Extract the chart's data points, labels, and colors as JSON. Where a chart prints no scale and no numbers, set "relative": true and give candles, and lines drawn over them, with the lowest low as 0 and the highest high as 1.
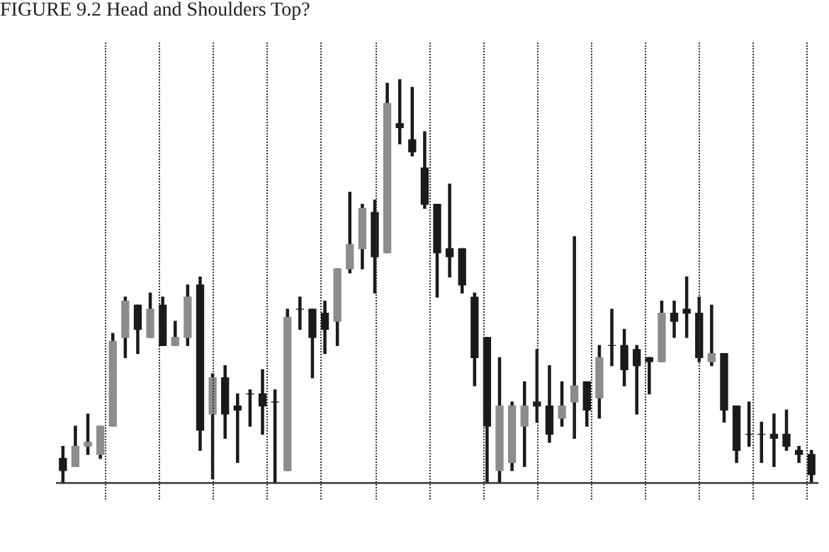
{
  "chart_data": {
    "type": "candlestick",
    "title": "FIGURE 9.2 Head and Shoulders Top?",
    "relative": true,
    "color": "#1a1a1a",
    "grid": "x",
    "colors": [
      "#1a1a1a",
      "#8c8c8c",
      "#8c8c8c",
      "#8c8c8c",
      "#8c8c8c",
      "#8c8c8c",
      "#1a1a1a",
      "#8c8c8c",
      "#1a1a1a",
      "#8c8c8c",
      "#8c8c8c",
      "#1a1a1a",
      "#8c8c8c",
      "#1a1a1a",
      "#1a1a1a",
      "#1a1a1a",
      "#1a1a1a",
      "#1a1a1a",
      "#8c8c8c",
      "#1a1a1a",
      "#1a1a1a",
      "#1a1a1a",
      "#8c8c8c",
      "#8c8c8c",
      "#8c8c8c",
      "#1a1a1a",
      "#8c8c8c",
      "#1a1a1a",
      "#1a1a1a",
      "#1a1a1a",
      "#1a1a1a",
      "#1a1a1a",
      "#1a1a1a",
      "#1a1a1a",
      "#1a1a1a",
      "#8c8c8c",
      "#8c8c8c",
      "#8c8c8c",
      "#1a1a1a",
      "#1a1a1a",
      "#8c8c8c",
      "#8c8c8c",
      "#1a1a1a",
      "#8c8c8c",
      "#1a1a1a",
      "#1a1a1a",
      "#1a1a1a",
      "#1a1a1a",
      "#8c8c8c",
      "#1a1a1a",
      "#1a1a1a",
      "#1a1a1a",
      "#8c8c8c",
      "#1a1a1a",
      "#1a1a1a",
      "#1a1a1a",
      "#1a1a1a",
      "#1a1a1a",
      "#1a1a1a",
      "#1a1a1a",
      "#1a1a1a"
    ],
    "categories": [
      null,
      null,
      null,
      null,
      null,
      null,
      null,
      null,
      null,
      null,
      null,
      null,
      null,
      null,
      null,
      null,
      null,
      null,
      null,
      null,
      null,
      null,
      null,
      null,
      null,
      null,
      null,
      null,
      null,
      null,
      null,
      null,
      null,
      null,
      null,
      null,
      null,
      null,
      null,
      null,
      null,
      null,
      null,
      null,
      null,
      null,
      null,
      null,
      null,
      null,
      null,
      null,
      null,
      null,
      null,
      null,
      null,
      null,
      null,
      null,
      null
    ],
    "ohlc": [
      [
        0.06,
        0.09,
        0,
        0.03
      ],
      [
        0.04,
        0.14,
        0.04,
        0.09
      ],
      [
        0.09,
        0.17,
        0.07,
        0.1
      ],
      [
        0.07,
        0.14,
        0.06,
        0.14
      ],
      [
        0.14,
        0.37,
        0.14,
        0.35
      ],
      [
        0.36,
        0.46,
        0.31,
        0.45
      ],
      [
        0.44,
        0.44,
        0.32,
        0.38
      ],
      [
        0.36,
        0.47,
        0.36,
        0.43
      ],
      [
        0.44,
        0.46,
        0.34,
        0.34
      ],
      [
        0.34,
        0.4,
        0.34,
        0.36
      ],
      [
        0.36,
        0.49,
        0.34,
        0.46
      ],
      [
        0.49,
        0.51,
        0.08,
        0.13
      ],
      [
        0.17,
        0.27,
        0.01,
        0.26
      ],
      [
        0.26,
        0.29,
        0.11,
        0.17
      ],
      [
        0.19,
        0.22,
        0.05,
        0.18
      ],
      [
        0.22,
        0.23,
        0.14,
        0.22
      ],
      [
        0.22,
        0.28,
        0.12,
        0.19
      ],
      [
        0.2,
        0.23,
        0,
        0.2
      ],
      [
        0.03,
        0.43,
        0.03,
        0.41
      ],
      [
        0.43,
        0.46,
        0.38,
        0.43
      ],
      [
        0.43,
        0.43,
        0.26,
        0.36
      ],
      [
        0.42,
        0.45,
        0.32,
        0.38
      ],
      [
        0.4,
        0.53,
        0.34,
        0.53
      ],
      [
        0.53,
        0.72,
        0.52,
        0.59
      ],
      [
        0.58,
        0.69,
        0.53,
        0.68
      ],
      [
        0.67,
        0.7,
        0.47,
        0.56
      ],
      [
        0.57,
        0.99,
        0.57,
        0.94
      ],
      [
        0.89,
        1,
        0.84,
        0.88
      ],
      [
        0.85,
        0.98,
        0.81,
        0.82
      ],
      [
        0.78,
        0.87,
        0.68,
        0.69
      ],
      [
        0.69,
        0.69,
        0.46,
        0.57
      ],
      [
        0.58,
        0.74,
        0.51,
        0.56
      ],
      [
        0.58,
        0.58,
        0.47,
        0.49
      ],
      [
        0.46,
        0.47,
        0.24,
        0.31
      ],
      [
        0.36,
        0.36,
        0,
        0.14
      ],
      [
        0.03,
        0.31,
        0,
        0.19
      ],
      [
        0.05,
        0.2,
        0.03,
        0.19
      ],
      [
        0.14,
        0.25,
        0.04,
        0.19
      ],
      [
        0.2,
        0.33,
        0.15,
        0.19
      ],
      [
        0.19,
        0.29,
        0.1,
        0.12
      ],
      [
        0.16,
        0.25,
        0.14,
        0.19
      ],
      [
        0.2,
        0.61,
        0.11,
        0.24
      ],
      [
        0.25,
        0.25,
        0.14,
        0.18
      ],
      [
        0.21,
        0.34,
        0.16,
        0.31
      ],
      [
        0.34,
        0.43,
        0.29,
        0.34
      ],
      [
        0.34,
        0.38,
        0.24,
        0.28
      ],
      [
        0.33,
        0.34,
        0.17,
        0.29
      ],
      [
        0.31,
        0.31,
        0.22,
        0.3
      ],
      [
        0.3,
        0.45,
        0.3,
        0.42
      ],
      [
        0.42,
        0.45,
        0.36,
        0.4
      ],
      [
        0.43,
        0.51,
        0.36,
        0.42
      ],
      [
        0.42,
        0.46,
        0.3,
        0.31
      ],
      [
        0.3,
        0.44,
        0.29,
        0.32
      ],
      [
        0.32,
        0.32,
        0.15,
        0.18
      ],
      [
        0.19,
        0.19,
        0.05,
        0.08
      ],
      [
        0.12,
        0.2,
        0.09,
        0.12
      ],
      [
        0.12,
        0.15,
        0.05,
        0.12
      ],
      [
        0.12,
        0.17,
        0.04,
        0.11
      ],
      [
        0.12,
        0.18,
        0.08,
        0.09
      ],
      [
        0.08,
        0.09,
        0.05,
        0.07
      ],
      [
        0.07,
        0.08,
        0,
        0.02
      ]
    ]
  }
}
